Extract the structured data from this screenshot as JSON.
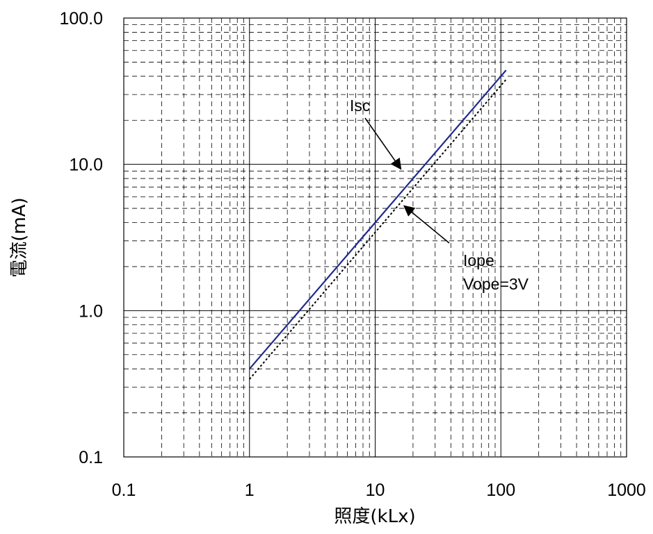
{
  "chart_data": {
    "type": "line",
    "x_scale": "log",
    "y_scale": "log",
    "xlim": [
      0.1,
      1000
    ],
    "ylim": [
      0.1,
      100
    ],
    "xlabel": "照度(kLx)",
    "ylabel": "電流(mA)",
    "x_ticks": [
      "0.1",
      "1",
      "10",
      "100",
      "1000"
    ],
    "y_ticks": [
      "100.0",
      "10.0",
      "1.0",
      "0.1"
    ],
    "grid": "major solid, minor dashed",
    "series": [
      {
        "name": "Isc",
        "style": "solid",
        "color": "#1f2a8c",
        "x": [
          1,
          110
        ],
        "y": [
          0.4,
          44
        ]
      },
      {
        "name": "Iope",
        "style": "dotted",
        "color": "#000000",
        "x": [
          1,
          110
        ],
        "y": [
          0.34,
          38
        ]
      }
    ],
    "annotations": [
      {
        "lines": [
          "Isc"
        ],
        "target_x": 16,
        "target_y": 9.3
      },
      {
        "lines": [
          "Iope",
          "Vope=3V"
        ],
        "target_x": 17,
        "target_y": 5.2
      }
    ]
  }
}
